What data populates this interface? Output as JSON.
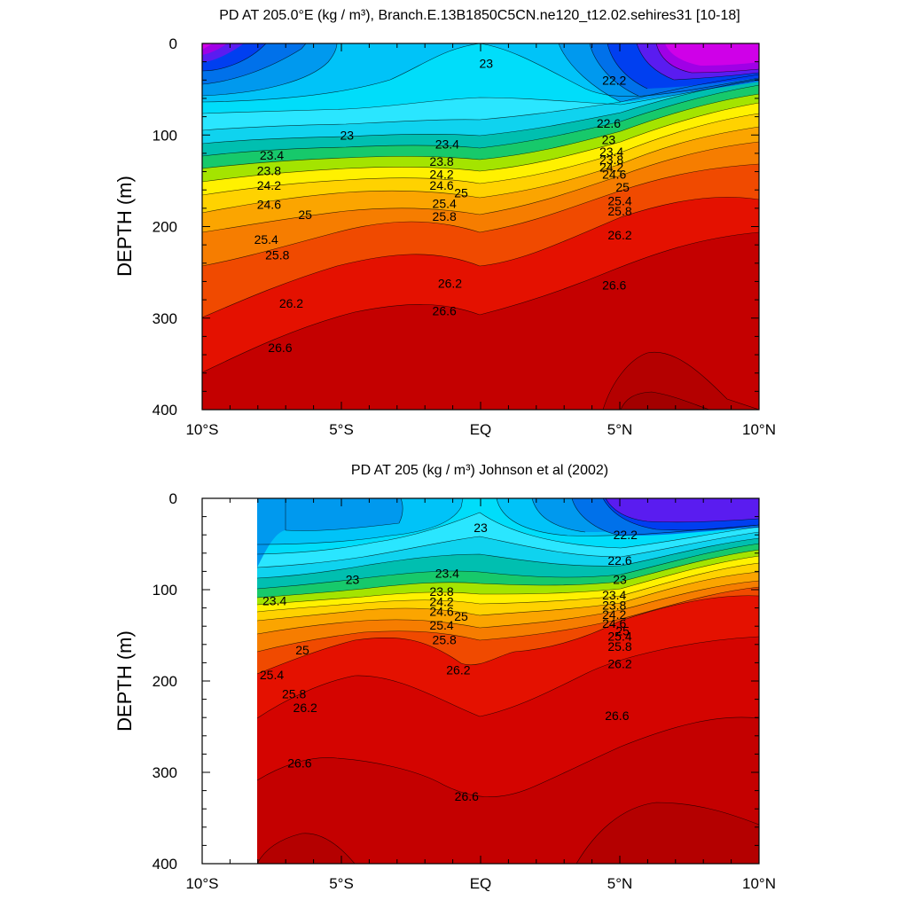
{
  "chart_data": [
    {
      "type": "contour",
      "title": "PD AT 205.0°E (kg / m³), Branch.E.13B1850C5CN.ne120_t12.02.sehires31 [10-18]",
      "ylabel": "DEPTH (m)",
      "xlabel": "",
      "xlim": [
        -10,
        10
      ],
      "ylim": [
        400,
        0
      ],
      "x_ticks": [
        "10°S",
        "5°S",
        "EQ",
        "5°N",
        "10°N"
      ],
      "y_ticks": [
        "0",
        "100",
        "200",
        "300",
        "400"
      ],
      "data_xmin": -10,
      "levels": [
        22.2,
        22.6,
        23,
        23.4,
        23.8,
        24.2,
        24.6,
        25,
        25.4,
        25.8,
        26.2,
        26.6
      ],
      "contour_labels": [
        {
          "text": "23",
          "x": 0.2,
          "y": 22
        },
        {
          "text": "22.2",
          "x": 4.8,
          "y": 40
        },
        {
          "text": "22.6",
          "x": 4.6,
          "y": 87
        },
        {
          "text": "23",
          "x": -4.8,
          "y": 100
        },
        {
          "text": "23.4",
          "x": -7.5,
          "y": 122
        },
        {
          "text": "23.8",
          "x": -7.6,
          "y": 139
        },
        {
          "text": "24.2",
          "x": -7.6,
          "y": 155
        },
        {
          "text": "24.6",
          "x": -7.6,
          "y": 176
        },
        {
          "text": "25",
          "x": -6.3,
          "y": 187
        },
        {
          "text": "25.4",
          "x": -7.7,
          "y": 214
        },
        {
          "text": "25.8",
          "x": -7.3,
          "y": 231
        },
        {
          "text": "26.2",
          "x": -6.8,
          "y": 284
        },
        {
          "text": "26.6",
          "x": -7.2,
          "y": 332
        },
        {
          "text": "23.4",
          "x": -1.2,
          "y": 110
        },
        {
          "text": "23.8",
          "x": -1.4,
          "y": 129
        },
        {
          "text": "24.2",
          "x": -1.4,
          "y": 143
        },
        {
          "text": "24.6",
          "x": -1.4,
          "y": 155
        },
        {
          "text": "25",
          "x": -0.7,
          "y": 163
        },
        {
          "text": "25.4",
          "x": -1.3,
          "y": 175
        },
        {
          "text": "25.8",
          "x": -1.3,
          "y": 189
        },
        {
          "text": "26.2",
          "x": -1.1,
          "y": 262
        },
        {
          "text": "26.6",
          "x": -1.3,
          "y": 292
        },
        {
          "text": "23",
          "x": 4.6,
          "y": 105
        },
        {
          "text": "23.4",
          "x": 4.7,
          "y": 118
        },
        {
          "text": "23.8",
          "x": 4.7,
          "y": 127
        },
        {
          "text": "24.2",
          "x": 4.7,
          "y": 135
        },
        {
          "text": "24.6",
          "x": 4.8,
          "y": 143
        },
        {
          "text": "25",
          "x": 5.1,
          "y": 157
        },
        {
          "text": "25.4",
          "x": 5.0,
          "y": 172
        },
        {
          "text": "25.8",
          "x": 5.0,
          "y": 183
        },
        {
          "text": "26.2",
          "x": 5.0,
          "y": 209
        },
        {
          "text": "26.6",
          "x": 4.8,
          "y": 264
        }
      ]
    },
    {
      "type": "contour",
      "title": "PD AT 205 (kg / m³) Johnson et al (2002)",
      "ylabel": "DEPTH (m)",
      "xlabel": "",
      "xlim": [
        -10,
        10
      ],
      "ylim": [
        400,
        0
      ],
      "x_ticks": [
        "10°S",
        "5°S",
        "EQ",
        "5°N",
        "10°N"
      ],
      "y_ticks": [
        "0",
        "100",
        "200",
        "300",
        "400"
      ],
      "data_xmin": -8.2,
      "levels": [
        22.2,
        22.6,
        23,
        23.4,
        23.8,
        24.2,
        24.6,
        25,
        25.4,
        25.8,
        26.2,
        26.6
      ],
      "contour_labels": [
        {
          "text": "23",
          "x": 0.0,
          "y": 32
        },
        {
          "text": "22.2",
          "x": 5.2,
          "y": 40
        },
        {
          "text": "22.6",
          "x": 5.0,
          "y": 68
        },
        {
          "text": "23",
          "x": -4.6,
          "y": 89
        },
        {
          "text": "23.4",
          "x": -7.4,
          "y": 112
        },
        {
          "text": "23.4",
          "x": -1.2,
          "y": 82
        },
        {
          "text": "23.8",
          "x": -1.4,
          "y": 102
        },
        {
          "text": "24.2",
          "x": -1.4,
          "y": 113
        },
        {
          "text": "24.6",
          "x": -1.4,
          "y": 124
        },
        {
          "text": "25",
          "x": -0.7,
          "y": 129
        },
        {
          "text": "25.4",
          "x": -1.4,
          "y": 139
        },
        {
          "text": "25.8",
          "x": -1.3,
          "y": 155
        },
        {
          "text": "26.2",
          "x": -0.8,
          "y": 188
        },
        {
          "text": "26.6",
          "x": -0.5,
          "y": 326
        },
        {
          "text": "23",
          "x": 5.0,
          "y": 89
        },
        {
          "text": "23.4",
          "x": 4.8,
          "y": 106
        },
        {
          "text": "23.8",
          "x": 4.8,
          "y": 117
        },
        {
          "text": "24.2",
          "x": 4.8,
          "y": 127
        },
        {
          "text": "24.6",
          "x": 4.8,
          "y": 137
        },
        {
          "text": "25",
          "x": 5.1,
          "y": 145
        },
        {
          "text": "25.4",
          "x": 5.0,
          "y": 151
        },
        {
          "text": "25.8",
          "x": 5.0,
          "y": 162
        },
        {
          "text": "26.2",
          "x": 5.0,
          "y": 181
        },
        {
          "text": "26.6",
          "x": 4.9,
          "y": 238
        },
        {
          "text": "25",
          "x": -6.4,
          "y": 166
        },
        {
          "text": "25.4",
          "x": -7.5,
          "y": 193
        },
        {
          "text": "25.8",
          "x": -6.7,
          "y": 214
        },
        {
          "text": "26.2",
          "x": -6.3,
          "y": 229
        },
        {
          "text": "26.6",
          "x": -6.5,
          "y": 290
        }
      ]
    }
  ]
}
